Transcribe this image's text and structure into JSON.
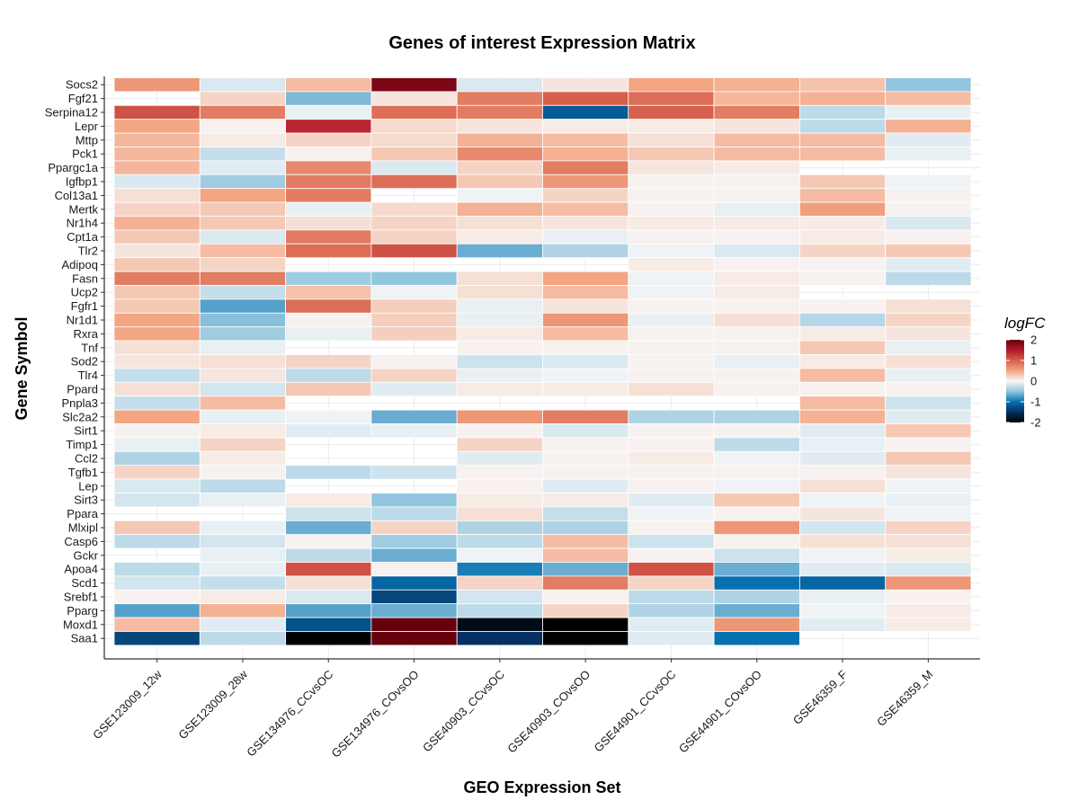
{
  "chart_data": {
    "type": "heatmap",
    "title": "Genes of interest Expression Matrix",
    "xlabel": "GEO Expression Set",
    "ylabel": "Gene Symbol",
    "legend": {
      "title": "logFC",
      "position": "right",
      "ticks": [
        2,
        1,
        0,
        -1,
        -2
      ]
    },
    "color_scale": {
      "min": -2,
      "max": 2,
      "low": "#000000",
      "mid": "#f7f7f7",
      "high": "#67000d"
    },
    "columns": [
      "GSE123009_12w",
      "GSE123009_28w",
      "GSE134976_CCvsOC",
      "GSE134976_COvsOO",
      "GSE40903_CCvsOC",
      "GSE40903_COvsOO",
      "GSE44901_CCvsOC",
      "GSE44901_COvsOO",
      "GSE46359_F",
      "GSE46359_M"
    ],
    "rows": [
      "Socs2",
      "Fgf21",
      "Serpina12",
      "Lepr",
      "Mttp",
      "Pck1",
      "Ppargc1a",
      "Igfbp1",
      "Col13a1",
      "Mertk",
      "Nr1h4",
      "Cpt1a",
      "Tlr2",
      "Adipoq",
      "Fasn",
      "Ucp2",
      "Fgfr1",
      "Nr1d1",
      "Rxra",
      "Tnf",
      "Sod2",
      "Tlr4",
      "Ppard",
      "Pnpla3",
      "Slc2a2",
      "Sirt1",
      "Timp1",
      "Ccl2",
      "Tgfb1",
      "Lep",
      "Sirt3",
      "Ppara",
      "Mlxipl",
      "Casp6",
      "Gckr",
      "Apoa4",
      "Scd1",
      "Srebf1",
      "Pparg",
      "Moxd1",
      "Saa1"
    ],
    "values": [
      [
        0.8,
        -0.2,
        0.5,
        2.2,
        -0.2,
        0.15,
        0.7,
        0.6,
        0.45,
        -0.7
      ],
      [
        null,
        0.3,
        -0.8,
        0.15,
        1.0,
        1.2,
        1.1,
        0.55,
        0.6,
        0.5
      ],
      [
        1.3,
        1.0,
        -0.1,
        1.1,
        1.0,
        -1.6,
        1.2,
        1.0,
        -0.4,
        -0.1
      ],
      [
        0.7,
        0.05,
        1.6,
        0.25,
        0.15,
        0.1,
        0.1,
        0.15,
        -0.4,
        0.6
      ],
      [
        0.55,
        0.1,
        0.3,
        0.25,
        0.6,
        0.5,
        0.2,
        0.5,
        0.5,
        -0.15
      ],
      [
        0.55,
        -0.35,
        0.05,
        0.4,
        0.9,
        0.6,
        0.4,
        0.5,
        0.5,
        -0.1
      ],
      [
        0.55,
        -0.15,
        0.9,
        -0.2,
        0.3,
        1.0,
        0.15,
        0.1,
        null,
        null
      ],
      [
        -0.2,
        -0.6,
        1.0,
        1.1,
        0.4,
        0.8,
        0.05,
        0.05,
        0.4,
        -0.05
      ],
      [
        0.2,
        0.7,
        1.0,
        null,
        -0.05,
        0.3,
        0.05,
        0.05,
        0.5,
        0.05
      ],
      [
        0.3,
        0.4,
        -0.1,
        0.25,
        0.6,
        0.5,
        0.05,
        -0.1,
        0.75,
        0.05
      ],
      [
        0.6,
        0.4,
        0.2,
        0.3,
        0.2,
        0.15,
        0.1,
        0.1,
        0.1,
        -0.2
      ],
      [
        0.4,
        -0.2,
        1.0,
        0.3,
        0.1,
        -0.1,
        0.05,
        0.05,
        0.1,
        0.05
      ],
      [
        0.15,
        0.5,
        1.1,
        1.3,
        -0.9,
        -0.5,
        -0.05,
        -0.2,
        0.3,
        0.4
      ],
      [
        0.4,
        0.3,
        null,
        null,
        null,
        null,
        0.1,
        0.05,
        0.05,
        -0.15
      ],
      [
        1.0,
        1.0,
        -0.6,
        -0.7,
        0.2,
        0.7,
        -0.05,
        0.1,
        0.05,
        -0.4
      ],
      [
        0.4,
        -0.35,
        0.45,
        -0.05,
        0.2,
        0.5,
        -0.05,
        0.1,
        null,
        null
      ],
      [
        0.4,
        -1.0,
        1.1,
        0.35,
        -0.1,
        0.15,
        0.05,
        0.05,
        0.05,
        0.2
      ],
      [
        0.7,
        -0.75,
        0.05,
        0.35,
        -0.1,
        0.8,
        -0.1,
        0.2,
        -0.45,
        0.3
      ],
      [
        0.7,
        -0.6,
        -0.1,
        0.35,
        0.1,
        0.5,
        0.05,
        0.05,
        0.1,
        0.15
      ],
      [
        0.2,
        -0.1,
        null,
        null,
        0.05,
        0.05,
        0.05,
        0.05,
        0.4,
        -0.1
      ],
      [
        0.15,
        0.2,
        0.3,
        0.05,
        -0.3,
        -0.2,
        0.05,
        -0.1,
        0.1,
        0.2
      ],
      [
        -0.35,
        0.15,
        -0.4,
        0.3,
        -0.1,
        -0.05,
        0.05,
        0.05,
        0.5,
        -0.1
      ],
      [
        0.2,
        -0.25,
        0.4,
        -0.15,
        0.1,
        0.1,
        0.2,
        0.05,
        0.05,
        0.05
      ],
      [
        -0.35,
        0.5,
        null,
        null,
        null,
        null,
        null,
        null,
        0.5,
        -0.3
      ],
      [
        0.7,
        -0.1,
        -0.05,
        -0.9,
        0.8,
        1.0,
        -0.5,
        -0.5,
        0.6,
        -0.15
      ],
      [
        0.05,
        0.1,
        -0.15,
        -0.1,
        0.05,
        -0.2,
        0.05,
        0.05,
        -0.15,
        0.4
      ],
      [
        -0.1,
        0.3,
        null,
        null,
        0.3,
        0.05,
        0.05,
        -0.4,
        -0.1,
        0.05
      ],
      [
        -0.5,
        0.1,
        null,
        null,
        -0.15,
        0.05,
        0.1,
        -0.05,
        -0.15,
        0.4
      ],
      [
        0.3,
        0.05,
        -0.4,
        -0.3,
        0.05,
        0.05,
        0.05,
        0.05,
        0.05,
        0.15
      ],
      [
        -0.2,
        -0.4,
        null,
        null,
        0.05,
        -0.15,
        0.05,
        -0.05,
        0.2,
        -0.05
      ],
      [
        -0.25,
        -0.1,
        0.1,
        -0.7,
        0.1,
        0.1,
        -0.15,
        0.4,
        -0.05,
        -0.1
      ],
      [
        null,
        null,
        -0.3,
        -0.4,
        0.2,
        -0.35,
        -0.05,
        0.05,
        0.15,
        -0.05
      ],
      [
        0.4,
        -0.1,
        -0.9,
        0.3,
        -0.5,
        -0.5,
        0.05,
        0.8,
        -0.25,
        0.3
      ],
      [
        -0.4,
        -0.25,
        0.05,
        -0.6,
        -0.4,
        0.5,
        -0.3,
        0.05,
        0.2,
        0.2
      ],
      [
        null,
        -0.1,
        -0.4,
        -0.9,
        -0.05,
        0.5,
        0.05,
        -0.3,
        -0.05,
        0.1
      ],
      [
        -0.4,
        -0.1,
        1.3,
        0.05,
        -1.3,
        -0.9,
        1.3,
        -0.9,
        -0.15,
        -0.2
      ],
      [
        -0.25,
        -0.35,
        0.2,
        -1.5,
        0.3,
        1.0,
        0.3,
        -1.4,
        -1.5,
        0.8
      ],
      [
        0.05,
        0.1,
        -0.2,
        -1.8,
        -0.25,
        0.05,
        -0.4,
        -0.5,
        -0.1,
        0.05
      ],
      [
        -1.0,
        0.6,
        -1.0,
        -0.9,
        -0.4,
        0.3,
        -0.5,
        -0.9,
        -0.05,
        0.1
      ],
      [
        0.5,
        -0.15,
        -1.7,
        2.5,
        -2.6,
        -2.8,
        -0.15,
        0.8,
        -0.15,
        0.1
      ],
      [
        -1.8,
        -0.4,
        -2.8,
        2.5,
        -2.0,
        -2.8,
        -0.15,
        -1.4,
        null,
        null
      ]
    ]
  }
}
